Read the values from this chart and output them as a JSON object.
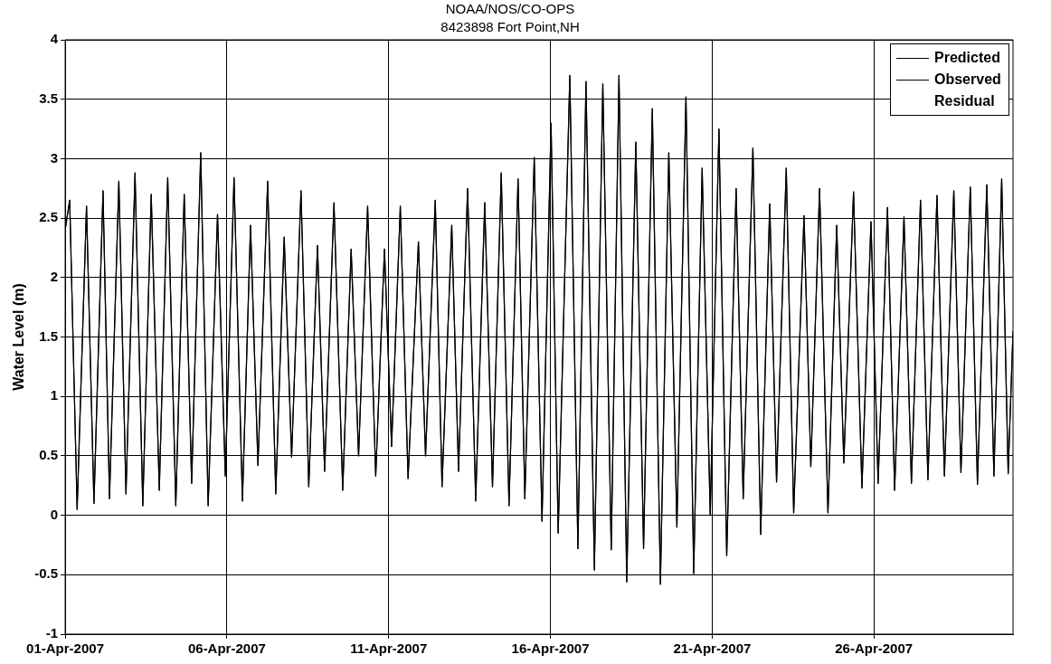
{
  "chart_data": {
    "type": "line",
    "title": "NOAA/NOS/CO-OPS",
    "subtitle": "8423898 Fort Point,NH",
    "ylabel": "Water Level (m)",
    "x": [
      "2007-04-01T00:00",
      "2007-04-01T03:22",
      "2007-04-01T08:53",
      "2007-04-01T15:50",
      "2007-04-01T21:22",
      "2007-04-02T04:05",
      "2007-04-02T08:53",
      "2007-04-02T15:50",
      "2007-04-02T21:07",
      "2007-04-03T03:50",
      "2007-04-03T09:36",
      "2007-04-03T15:50",
      "2007-04-03T21:50",
      "2007-04-04T04:05",
      "2007-04-04T10:05",
      "2007-04-04T16:19",
      "2007-04-04T21:50",
      "2007-04-05T04:34",
      "2007-04-05T10:05",
      "2007-04-05T17:02",
      "2007-04-05T22:48",
      "2007-04-06T05:17",
      "2007-04-06T11:31",
      "2007-04-06T17:31",
      "2007-04-06T23:02",
      "2007-04-07T06:14",
      "2007-04-07T12:14",
      "2007-04-07T18:29",
      "2007-04-08T00:00",
      "2007-04-08T06:58",
      "2007-04-08T12:43",
      "2007-04-08T19:12",
      "2007-04-09T00:29",
      "2007-04-09T07:26",
      "2007-04-09T13:55",
      "2007-04-09T20:10",
      "2007-04-10T01:41",
      "2007-04-10T08:24",
      "2007-04-10T14:24",
      "2007-04-10T20:53",
      "2007-04-11T02:10",
      "2007-04-11T08:38",
      "2007-04-11T14:24",
      "2007-04-11T22:05",
      "2007-04-12T03:22",
      "2007-04-12T10:34",
      "2007-04-12T15:36",
      "2007-04-12T22:48",
      "2007-04-13T03:50",
      "2007-04-13T10:34",
      "2007-04-13T16:34",
      "2007-04-13T23:17",
      "2007-04-14T05:02",
      "2007-04-14T11:31",
      "2007-04-14T17:17",
      "2007-04-15T00:00",
      "2007-04-15T05:02",
      "2007-04-15T12:00",
      "2007-04-15T17:46",
      "2007-04-16T00:29",
      "2007-04-16T05:46",
      "2007-04-16T14:24",
      "2007-04-16T20:24",
      "2007-04-17T02:24",
      "2007-04-17T08:38",
      "2007-04-17T14:53",
      "2007-04-17T21:07",
      "2007-04-18T02:53",
      "2007-04-18T08:38",
      "2007-04-18T15:22",
      "2007-04-18T21:07",
      "2007-04-19T03:36",
      "2007-04-19T09:36",
      "2007-04-19T15:50",
      "2007-04-19T21:50",
      "2007-04-20T04:34",
      "2007-04-20T10:19",
      "2007-04-20T16:34",
      "2007-04-20T22:34",
      "2007-04-21T05:02",
      "2007-04-21T10:48",
      "2007-04-21T17:46",
      "2007-04-21T23:02",
      "2007-04-22T06:14",
      "2007-04-22T12:00",
      "2007-04-22T18:43",
      "2007-04-22T23:46",
      "2007-04-23T06:58",
      "2007-04-23T12:29",
      "2007-04-23T20:10",
      "2007-04-24T01:12",
      "2007-04-24T07:41",
      "2007-04-24T13:55",
      "2007-04-24T20:24",
      "2007-04-25T01:41",
      "2007-04-25T08:53",
      "2007-04-25T15:07",
      "2007-04-25T21:50",
      "2007-04-26T03:07",
      "2007-04-26T10:05",
      "2007-04-26T15:22",
      "2007-04-26T22:19",
      "2007-04-27T03:50",
      "2007-04-27T10:34",
      "2007-04-27T16:05",
      "2007-04-27T22:48",
      "2007-04-28T04:19",
      "2007-04-28T11:17",
      "2007-04-28T16:34",
      "2007-04-28T23:31",
      "2007-04-29T04:48",
      "2007-04-29T11:46",
      "2007-04-29T17:02",
      "2007-04-29T22:48",
      "2007-04-30T03:36",
      "2007-04-30T07:12"
    ],
    "series": [
      {
        "name": "Predicted",
        "color": "#000000",
        "values": [
          2.4,
          2.65,
          0.05,
          2.6,
          0.1,
          2.73,
          0.14,
          2.81,
          0.18,
          2.88,
          0.08,
          2.7,
          0.21,
          2.84,
          0.08,
          2.7,
          0.27,
          3.05,
          0.08,
          2.53,
          0.33,
          2.84,
          0.12,
          2.44,
          0.42,
          2.81,
          0.18,
          2.34,
          0.49,
          2.73,
          0.24,
          2.27,
          0.37,
          2.63,
          0.21,
          2.24,
          0.5,
          2.6,
          0.33,
          2.24,
          0.58,
          2.6,
          0.31,
          2.3,
          0.5,
          2.65,
          0.24,
          2.44,
          0.37,
          2.75,
          0.12,
          2.63,
          0.24,
          2.88,
          0.08,
          2.83,
          0.14,
          3.01,
          -0.05,
          3.3,
          -0.15,
          3.7,
          -0.28,
          3.65,
          -0.46,
          3.63,
          -0.29,
          3.7,
          -0.56,
          3.14,
          -0.28,
          3.42,
          -0.58,
          3.05,
          -0.1,
          3.52,
          -0.49,
          2.92,
          0.0,
          3.25,
          -0.34,
          2.75,
          0.14,
          3.09,
          -0.16,
          2.62,
          0.28,
          2.92,
          0.02,
          2.52,
          0.41,
          2.75,
          0.02,
          2.44,
          0.44,
          2.72,
          0.23,
          2.47,
          0.27,
          2.59,
          0.21,
          2.51,
          0.27,
          2.65,
          0.3,
          2.69,
          0.33,
          2.73,
          0.36,
          2.76,
          0.26,
          2.78,
          0.33,
          2.83,
          0.35,
          1.55
        ]
      },
      {
        "name": "Observed",
        "color": "#000000",
        "values": [
          2.4,
          2.65,
          0.05,
          2.6,
          0.1,
          2.73,
          0.14,
          2.81,
          0.18,
          2.88,
          0.08,
          2.7,
          0.21,
          2.84,
          0.08,
          2.7,
          0.27,
          3.05,
          0.08,
          2.53,
          0.33,
          2.84,
          0.12,
          2.44,
          0.42,
          2.81,
          0.18,
          2.34,
          0.49,
          2.73,
          0.24,
          2.27,
          0.37,
          2.63,
          0.21,
          2.24,
          0.5,
          2.6,
          0.33,
          2.24,
          0.58,
          2.6,
          0.31,
          2.3,
          0.5,
          2.65,
          0.24,
          2.44,
          0.37,
          2.75,
          0.12,
          2.63,
          0.24,
          2.88,
          0.08,
          2.83,
          0.14,
          3.01,
          -0.05,
          3.3,
          -0.15,
          3.7,
          -0.28,
          3.65,
          -0.46,
          3.63,
          -0.29,
          3.7,
          -0.56,
          3.14,
          -0.28,
          3.42,
          -0.58,
          3.05,
          -0.1,
          3.52,
          -0.49,
          2.92,
          0.0,
          3.25,
          -0.34,
          2.75,
          0.14,
          3.09,
          -0.16,
          2.62,
          0.28,
          2.92,
          0.02,
          2.52,
          0.41,
          2.75,
          0.02,
          2.44,
          0.44,
          2.72,
          0.23,
          2.47,
          0.27,
          2.59,
          0.21,
          2.51,
          0.27,
          2.65,
          0.3,
          2.69,
          0.33,
          2.73,
          0.36,
          2.76,
          0.26,
          2.78,
          0.33,
          2.83,
          0.35,
          1.55
        ]
      }
    ],
    "annotations": [
      "Residual"
    ],
    "xlim": [
      "2007-04-01",
      "2007-04-30T07:12"
    ],
    "xticks": [
      {
        "value": "2007-04-01",
        "label": "01-Apr-2007"
      },
      {
        "value": "2007-04-06",
        "label": "06-Apr-2007"
      },
      {
        "value": "2007-04-11",
        "label": "11-Apr-2007"
      },
      {
        "value": "2007-04-16",
        "label": "16-Apr-2007"
      },
      {
        "value": "2007-04-21",
        "label": "21-Apr-2007"
      },
      {
        "value": "2007-04-26",
        "label": "26-Apr-2007"
      }
    ],
    "ylim": [
      -1,
      4
    ],
    "yticks": [
      -1,
      -0.5,
      0,
      0.5,
      1,
      1.5,
      2,
      2.5,
      3,
      3.5,
      4
    ],
    "grid": true,
    "legend": "top right",
    "line_style": "solid"
  }
}
